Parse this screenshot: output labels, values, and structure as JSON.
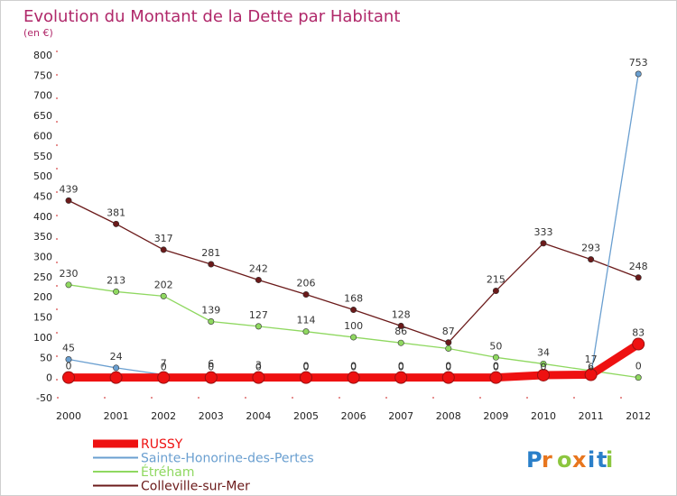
{
  "chart_data": {
    "type": "line",
    "title": "Evolution du Montant de la Dette par Habitant",
    "subtitle": "(en €)",
    "x": [
      "2000",
      "2001",
      "2002",
      "2003",
      "2004",
      "2005",
      "2006",
      "2007",
      "2008",
      "2009",
      "2010",
      "2011",
      "2012"
    ],
    "ylim": [
      -50,
      800
    ],
    "yticks": [
      -50,
      0,
      50,
      100,
      150,
      200,
      250,
      300,
      350,
      400,
      450,
      500,
      550,
      600,
      650,
      700,
      750,
      800
    ],
    "grid": false,
    "legend_position": "bottom-left",
    "series": [
      {
        "name": "RUSSY",
        "color": "#ee1111",
        "values": [
          0,
          0,
          0,
          0,
          0,
          0,
          0,
          0,
          0,
          0,
          6,
          7,
          83
        ],
        "labels": [
          "0",
          "",
          "",
          "",
          "",
          "",
          "",
          "",
          "",
          "",
          "",
          "",
          "83"
        ]
      },
      {
        "name": "Sainte-Honorine-des-Pertes",
        "color": "#6a9fd0",
        "values": [
          45,
          24,
          7,
          6,
          3,
          0,
          0,
          0,
          0,
          0,
          4,
          5,
          753
        ],
        "labels": [
          "45",
          "24",
          "7",
          "6",
          "3",
          "0",
          "0",
          "0",
          "0",
          "0",
          "",
          "",
          "753"
        ]
      },
      {
        "name": "Étréham",
        "color": "#8fd860",
        "values": [
          230,
          213,
          202,
          139,
          127,
          114,
          100,
          86,
          72,
          50,
          34,
          17,
          0
        ],
        "labels": [
          "230",
          "213",
          "202",
          "139",
          "127",
          "114",
          "100",
          "86",
          "",
          "50",
          "34",
          "17",
          "0"
        ]
      },
      {
        "name": "Colleville-sur-Mer",
        "color": "#6b1a1a",
        "values": [
          439,
          381,
          317,
          281,
          242,
          206,
          168,
          128,
          87,
          215,
          333,
          293,
          248
        ],
        "labels": [
          "439",
          "381",
          "317",
          "281",
          "242",
          "206",
          "168",
          "128",
          "87",
          "215",
          "333",
          "293",
          "248"
        ]
      }
    ]
  },
  "extra_labels": [
    "0",
    "0",
    "0",
    "0",
    "0",
    "0",
    "0",
    "0",
    "0",
    "6"
  ],
  "logo": {
    "text": "Proxiti"
  }
}
